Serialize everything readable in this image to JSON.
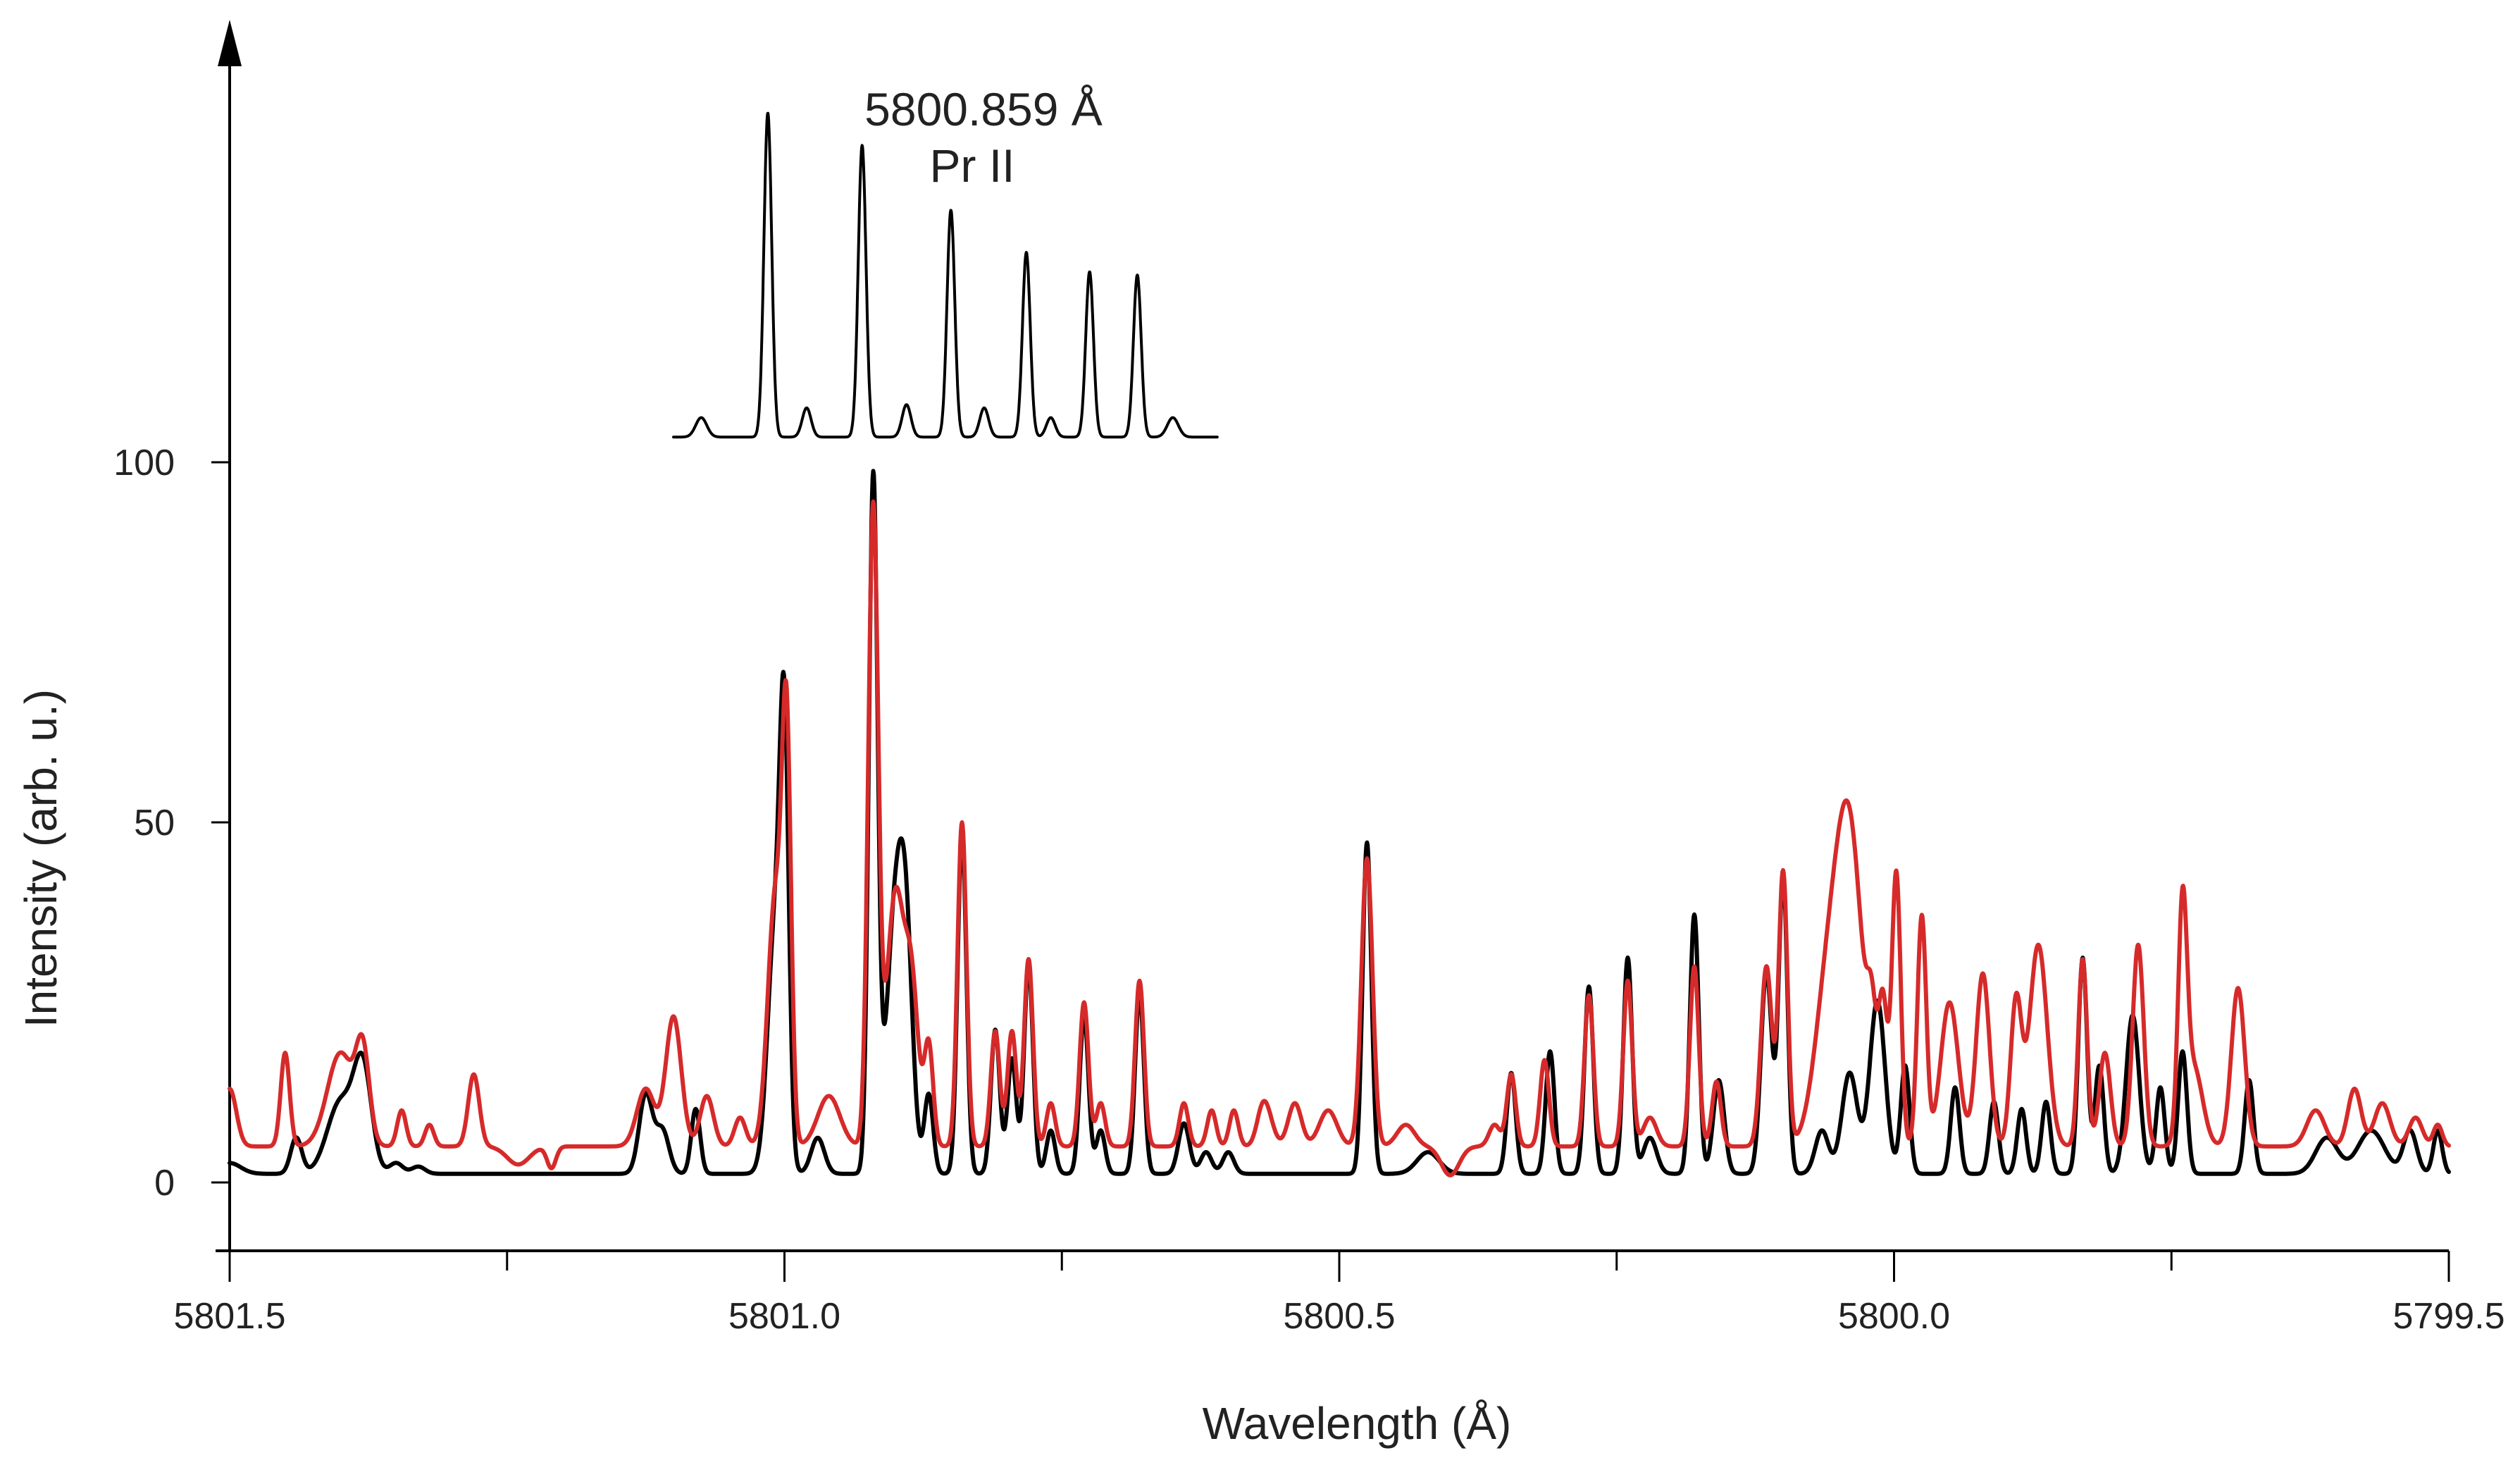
{
  "chart_data": {
    "type": "line",
    "title": "",
    "xlabel": "Wavelength (Å)",
    "ylabel": "Intensity (arb. u.)",
    "xlim": [
      5801.5,
      5799.5
    ],
    "ylim": [
      -9,
      162
    ],
    "x_inverted": true,
    "xticks_major": [
      5801.5,
      5801.0,
      5800.5,
      5800.0,
      5799.5
    ],
    "xticks_minor": [
      5801.25,
      5800.75,
      5800.25,
      5799.75
    ],
    "xtick_labels": [
      "5801.5",
      "5801.0",
      "5800.5",
      "5800.0",
      "5799.5"
    ],
    "yticks": [
      0,
      50,
      100
    ],
    "ytick_labels": [
      "0",
      "50",
      "100"
    ],
    "annotation": {
      "line1": "5800.859 Å",
      "line2": "Pr II"
    },
    "inset_series": {
      "name": "calculated hyperfine pattern 5800.859 Å Pr II",
      "color": "#000000",
      "x_range": [
        5801.1,
        5800.61
      ],
      "baseline": 103.5,
      "scale": 45,
      "peaks": [
        {
          "x": 5801.075,
          "h": 0.06,
          "w": 0.005
        },
        {
          "x": 5801.015,
          "h": 1.0,
          "w": 0.0035
        },
        {
          "x": 5800.98,
          "h": 0.09,
          "w": 0.004
        },
        {
          "x": 5800.93,
          "h": 0.9,
          "w": 0.0035
        },
        {
          "x": 5800.89,
          "h": 0.1,
          "w": 0.004
        },
        {
          "x": 5800.85,
          "h": 0.7,
          "w": 0.0035
        },
        {
          "x": 5800.82,
          "h": 0.09,
          "w": 0.004
        },
        {
          "x": 5800.782,
          "h": 0.57,
          "w": 0.0035
        },
        {
          "x": 5800.76,
          "h": 0.06,
          "w": 0.004
        },
        {
          "x": 5800.725,
          "h": 0.51,
          "w": 0.0035
        },
        {
          "x": 5800.682,
          "h": 0.5,
          "w": 0.0035
        },
        {
          "x": 5800.65,
          "h": 0.06,
          "w": 0.005
        }
      ]
    },
    "series": [
      {
        "name": "black spectrum",
        "color": "#000000",
        "baseline": 1.2,
        "peaks": [
          {
            "x": 5801.5,
            "h": 1.5,
            "w": 0.01
          },
          {
            "x": 5801.44,
            "h": 5,
            "w": 0.005
          },
          {
            "x": 5801.4,
            "h": 10,
            "w": 0.012
          },
          {
            "x": 5801.38,
            "h": 14,
            "w": 0.008
          },
          {
            "x": 5801.35,
            "h": 1.5,
            "w": 0.006
          },
          {
            "x": 5801.33,
            "h": 1,
            "w": 0.006
          },
          {
            "x": 5801.125,
            "h": 11,
            "w": 0.006
          },
          {
            "x": 5801.11,
            "h": 6,
            "w": 0.006
          },
          {
            "x": 5801.08,
            "h": 9,
            "w": 0.004
          },
          {
            "x": 5801.008,
            "h": 35,
            "w": 0.007
          },
          {
            "x": 5801.0,
            "h": 50,
            "w": 0.004
          },
          {
            "x": 5800.97,
            "h": 5,
            "w": 0.006
          },
          {
            "x": 5800.92,
            "h": 96,
            "w": 0.004
          },
          {
            "x": 5800.9,
            "h": 36,
            "w": 0.008
          },
          {
            "x": 5800.89,
            "h": 24,
            "w": 0.006
          },
          {
            "x": 5800.87,
            "h": 11,
            "w": 0.004
          },
          {
            "x": 5800.84,
            "h": 47,
            "w": 0.004
          },
          {
            "x": 5800.81,
            "h": 20,
            "w": 0.004
          },
          {
            "x": 5800.795,
            "h": 16,
            "w": 0.004
          },
          {
            "x": 5800.78,
            "h": 29,
            "w": 0.004
          },
          {
            "x": 5800.76,
            "h": 6,
            "w": 0.004
          },
          {
            "x": 5800.73,
            "h": 22,
            "w": 0.004
          },
          {
            "x": 5800.715,
            "h": 6,
            "w": 0.004
          },
          {
            "x": 5800.68,
            "h": 25,
            "w": 0.004
          },
          {
            "x": 5800.64,
            "h": 7,
            "w": 0.005
          },
          {
            "x": 5800.62,
            "h": 3,
            "w": 0.005
          },
          {
            "x": 5800.6,
            "h": 3,
            "w": 0.005
          },
          {
            "x": 5800.475,
            "h": 46,
            "w": 0.004
          },
          {
            "x": 5800.42,
            "h": 3,
            "w": 0.01
          },
          {
            "x": 5800.345,
            "h": 14,
            "w": 0.004
          },
          {
            "x": 5800.31,
            "h": 17,
            "w": 0.004
          },
          {
            "x": 5800.275,
            "h": 26,
            "w": 0.004
          },
          {
            "x": 5800.24,
            "h": 30,
            "w": 0.004
          },
          {
            "x": 5800.22,
            "h": 5,
            "w": 0.006
          },
          {
            "x": 5800.18,
            "h": 36,
            "w": 0.004
          },
          {
            "x": 5800.158,
            "h": 13,
            "w": 0.005
          },
          {
            "x": 5800.115,
            "h": 28,
            "w": 0.005
          },
          {
            "x": 5800.1,
            "h": 41,
            "w": 0.004
          },
          {
            "x": 5800.065,
            "h": 6,
            "w": 0.006
          },
          {
            "x": 5800.04,
            "h": 14,
            "w": 0.007
          },
          {
            "x": 5800.015,
            "h": 24,
            "w": 0.007
          },
          {
            "x": 5799.99,
            "h": 15,
            "w": 0.004
          },
          {
            "x": 5799.945,
            "h": 12,
            "w": 0.004
          },
          {
            "x": 5799.91,
            "h": 10,
            "w": 0.004
          },
          {
            "x": 5799.885,
            "h": 9,
            "w": 0.004
          },
          {
            "x": 5799.863,
            "h": 10,
            "w": 0.004
          },
          {
            "x": 5799.83,
            "h": 30,
            "w": 0.004
          },
          {
            "x": 5799.815,
            "h": 15,
            "w": 0.004
          },
          {
            "x": 5799.785,
            "h": 22,
            "w": 0.006
          },
          {
            "x": 5799.76,
            "h": 12,
            "w": 0.004
          },
          {
            "x": 5799.74,
            "h": 17,
            "w": 0.004
          },
          {
            "x": 5799.68,
            "h": 13,
            "w": 0.004
          },
          {
            "x": 5799.61,
            "h": 5,
            "w": 0.01
          },
          {
            "x": 5799.57,
            "h": 6,
            "w": 0.012
          },
          {
            "x": 5799.535,
            "h": 6,
            "w": 0.006
          },
          {
            "x": 5799.51,
            "h": 6,
            "w": 0.004
          }
        ]
      },
      {
        "name": "red spectrum",
        "color": "#d62a2a",
        "baseline": 5,
        "peaks": [
          {
            "x": 5801.5,
            "h": 8,
            "w": 0.006
          },
          {
            "x": 5801.45,
            "h": 13,
            "w": 0.004
          },
          {
            "x": 5801.4,
            "h": 13,
            "w": 0.012
          },
          {
            "x": 5801.38,
            "h": 12,
            "w": 0.006
          },
          {
            "x": 5801.345,
            "h": 5,
            "w": 0.004
          },
          {
            "x": 5801.32,
            "h": 3,
            "w": 0.004
          },
          {
            "x": 5801.28,
            "h": 10,
            "w": 0.005
          },
          {
            "x": 5801.24,
            "h": -2.5,
            "w": 0.01
          },
          {
            "x": 5801.21,
            "h": -3,
            "w": 0.004
          },
          {
            "x": 5801.125,
            "h": 8,
            "w": 0.008
          },
          {
            "x": 5801.1,
            "h": 18,
            "w": 0.007
          },
          {
            "x": 5801.07,
            "h": 7,
            "w": 0.006
          },
          {
            "x": 5801.04,
            "h": 4,
            "w": 0.005
          },
          {
            "x": 5801.008,
            "h": 35,
            "w": 0.007
          },
          {
            "x": 5800.998,
            "h": 51,
            "w": 0.004
          },
          {
            "x": 5800.96,
            "h": 7,
            "w": 0.01
          },
          {
            "x": 5800.92,
            "h": 88,
            "w": 0.0045
          },
          {
            "x": 5800.9,
            "h": 35,
            "w": 0.008
          },
          {
            "x": 5800.885,
            "h": 20,
            "w": 0.006
          },
          {
            "x": 5800.87,
            "h": 14,
            "w": 0.004
          },
          {
            "x": 5800.84,
            "h": 45,
            "w": 0.004
          },
          {
            "x": 5800.81,
            "h": 16,
            "w": 0.004
          },
          {
            "x": 5800.795,
            "h": 16,
            "w": 0.004
          },
          {
            "x": 5800.78,
            "h": 26,
            "w": 0.004
          },
          {
            "x": 5800.76,
            "h": 6,
            "w": 0.004
          },
          {
            "x": 5800.73,
            "h": 20,
            "w": 0.004
          },
          {
            "x": 5800.715,
            "h": 6,
            "w": 0.004
          },
          {
            "x": 5800.68,
            "h": 23,
            "w": 0.004
          },
          {
            "x": 5800.64,
            "h": 6,
            "w": 0.004
          },
          {
            "x": 5800.615,
            "h": 5,
            "w": 0.004
          },
          {
            "x": 5800.595,
            "h": 5,
            "w": 0.004
          },
          {
            "x": 5800.57,
            "h": 3,
            "w": 0.005
          },
          {
            "x": 5800.565,
            "h": 4,
            "w": 0.006
          },
          {
            "x": 5800.54,
            "h": 6,
            "w": 0.006
          },
          {
            "x": 5800.51,
            "h": 5,
            "w": 0.008
          },
          {
            "x": 5800.475,
            "h": 40,
            "w": 0.005
          },
          {
            "x": 5800.44,
            "h": 3,
            "w": 0.008
          },
          {
            "x": 5800.4,
            "h": -4,
            "w": 0.008
          },
          {
            "x": 5800.36,
            "h": 3,
            "w": 0.005
          },
          {
            "x": 5800.345,
            "h": 10,
            "w": 0.004
          },
          {
            "x": 5800.315,
            "h": 12,
            "w": 0.004
          },
          {
            "x": 5800.275,
            "h": 21,
            "w": 0.004
          },
          {
            "x": 5800.24,
            "h": 23,
            "w": 0.004
          },
          {
            "x": 5800.22,
            "h": 4,
            "w": 0.006
          },
          {
            "x": 5800.18,
            "h": 25,
            "w": 0.004
          },
          {
            "x": 5800.16,
            "h": 9,
            "w": 0.004
          },
          {
            "x": 5800.115,
            "h": 25,
            "w": 0.005
          },
          {
            "x": 5800.1,
            "h": 38,
            "w": 0.004
          },
          {
            "x": 5800.06,
            "h": 20,
            "w": 0.012
          },
          {
            "x": 5800.04,
            "h": 42,
            "w": 0.012
          },
          {
            "x": 5800.02,
            "h": 12,
            "w": 0.004
          },
          {
            "x": 5800.01,
            "h": 19,
            "w": 0.004
          },
          {
            "x": 5799.998,
            "h": 38,
            "w": 0.004
          },
          {
            "x": 5799.975,
            "h": 32,
            "w": 0.004
          },
          {
            "x": 5799.95,
            "h": 20,
            "w": 0.008
          },
          {
            "x": 5799.92,
            "h": 24,
            "w": 0.006
          },
          {
            "x": 5799.89,
            "h": 20,
            "w": 0.005
          },
          {
            "x": 5799.87,
            "h": 28,
            "w": 0.008
          },
          {
            "x": 5799.83,
            "h": 26,
            "w": 0.004
          },
          {
            "x": 5799.81,
            "h": 13,
            "w": 0.005
          },
          {
            "x": 5799.78,
            "h": 28,
            "w": 0.005
          },
          {
            "x": 5799.74,
            "h": 31,
            "w": 0.004
          },
          {
            "x": 5799.73,
            "h": 11,
            "w": 0.008
          },
          {
            "x": 5799.69,
            "h": 22,
            "w": 0.006
          },
          {
            "x": 5799.62,
            "h": 5,
            "w": 0.008
          },
          {
            "x": 5799.585,
            "h": 8,
            "w": 0.006
          },
          {
            "x": 5799.56,
            "h": 6,
            "w": 0.007
          },
          {
            "x": 5799.53,
            "h": 4,
            "w": 0.006
          },
          {
            "x": 5799.51,
            "h": 3,
            "w": 0.004
          }
        ]
      }
    ]
  }
}
